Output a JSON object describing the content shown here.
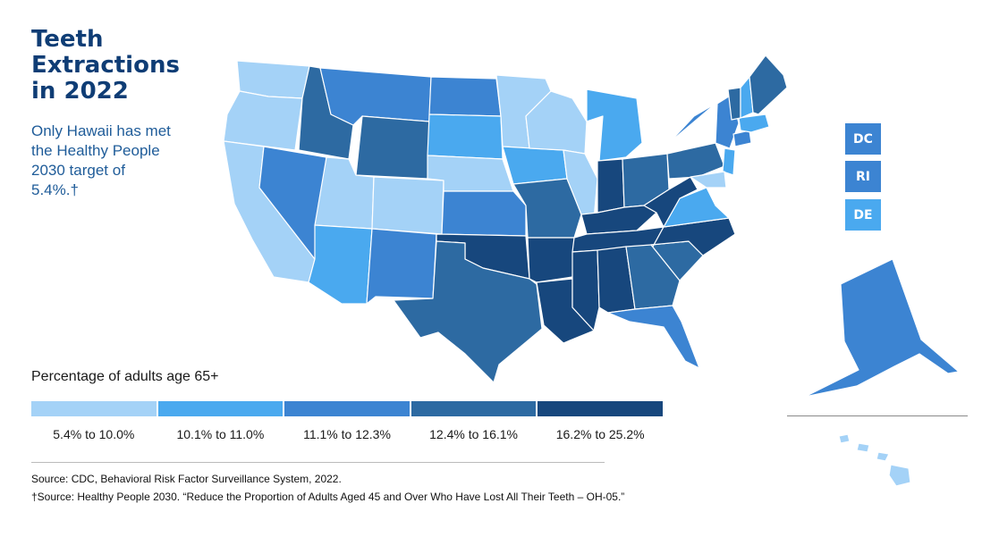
{
  "title": "Teeth Extractions in 2022",
  "subtitle": "Only Hawaii has met the Healthy People 2030 target of 5.4%.†",
  "legend": {
    "title": "Percentage of adults age 65+",
    "bins": [
      {
        "label": "5.4% to 10.0%",
        "color": "#a4d2f7"
      },
      {
        "label": "10.1% to 11.0%",
        "color": "#4aa9ef"
      },
      {
        "label": "11.1% to 12.3%",
        "color": "#3c84d2"
      },
      {
        "label": "12.4% to 16.1%",
        "color": "#2d6aa2"
      },
      {
        "label": "16.2% to 25.2%",
        "color": "#17477d"
      }
    ]
  },
  "small_states": [
    {
      "abbr": "DC",
      "bin": 2
    },
    {
      "abbr": "RI",
      "bin": 2
    },
    {
      "abbr": "DE",
      "bin": 1
    }
  ],
  "states": {
    "WA": 0,
    "OR": 0,
    "CA": 0,
    "NV": 2,
    "ID": 3,
    "MT": 2,
    "WY": 3,
    "UT": 0,
    "AZ": 1,
    "CO": 0,
    "NM": 2,
    "ND": 2,
    "SD": 1,
    "NE": 0,
    "KS": 2,
    "OK": 4,
    "TX": 3,
    "MN": 0,
    "IA": 1,
    "MO": 3,
    "AR": 4,
    "LA": 4,
    "WI": 0,
    "IL": 0,
    "MI": 1,
    "IN": 4,
    "OH": 3,
    "KY": 4,
    "TN": 4,
    "MS": 4,
    "AL": 4,
    "GA": 3,
    "FL": 2,
    "SC": 3,
    "NC": 4,
    "VA": 1,
    "WV": 4,
    "PA": 3,
    "NY": 2,
    "NJ": 1,
    "MD": 0,
    "CT": 2,
    "MA": 1,
    "VT": 3,
    "NH": 1,
    "ME": 3,
    "AK": 2,
    "HI": 0
  },
  "sources": [
    "Source: CDC, Behavioral Risk Factor Surveillance System, 2022.",
    "†Source: Healthy People 2030. “Reduce the Proportion of Adults Aged 45 and Over Who Have Lost All Their Teeth – OH‑05.”"
  ]
}
